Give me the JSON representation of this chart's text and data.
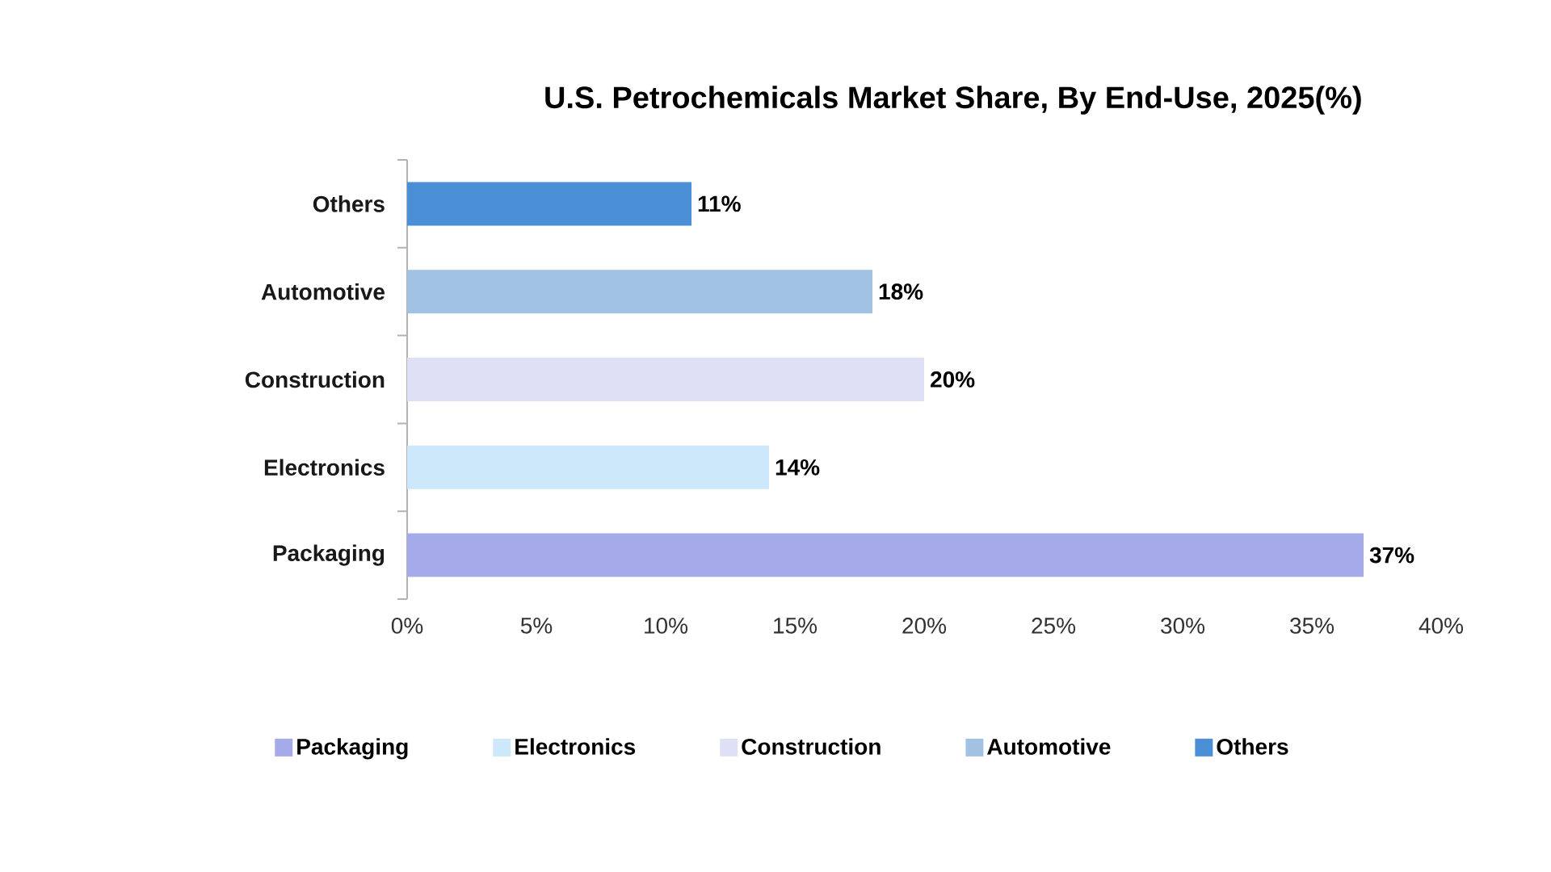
{
  "chart_data": {
    "type": "bar",
    "orientation": "horizontal",
    "stacked": true,
    "title": "U.S. Petrochemicals Market Share, By End-Use, 2025(%)",
    "categories": [
      "Others",
      "Automotive",
      "Construction",
      "Electronics",
      "Packaging"
    ],
    "series": [
      {
        "name": "Packaging",
        "color": "#a5abe8",
        "values": [
          null,
          null,
          null,
          null,
          37
        ],
        "value_labels": [
          null,
          null,
          null,
          null,
          "37%"
        ]
      },
      {
        "name": "Electronics",
        "color": "#cde8fa",
        "values": [
          null,
          null,
          null,
          14,
          null
        ],
        "value_labels": [
          null,
          null,
          null,
          "14%",
          null
        ]
      },
      {
        "name": "Construction",
        "color": "#dee0f5",
        "values": [
          null,
          null,
          20,
          null,
          null
        ],
        "value_labels": [
          null,
          null,
          "20%",
          null,
          null
        ]
      },
      {
        "name": "Automotive",
        "color": "#a1c2e3",
        "values": [
          null,
          18,
          null,
          null,
          null
        ],
        "value_labels": [
          null,
          "18%",
          null,
          null,
          null
        ]
      },
      {
        "name": "Others",
        "color": "#4a8fd6",
        "values": [
          11,
          null,
          null,
          null,
          null
        ],
        "value_labels": [
          "11%",
          null,
          null,
          null,
          null
        ]
      }
    ],
    "xlim": [
      0,
      40
    ],
    "xticks": [
      {
        "value": 0,
        "label": "0%"
      },
      {
        "value": 5,
        "label": "5%"
      },
      {
        "value": 10,
        "label": "10%"
      },
      {
        "value": 15,
        "label": "15%"
      },
      {
        "value": 20,
        "label": "20%"
      },
      {
        "value": 25,
        "label": "25%"
      },
      {
        "value": 30,
        "label": "30%"
      },
      {
        "value": 35,
        "label": "35%"
      },
      {
        "value": 40,
        "label": "40%"
      }
    ],
    "legend": "bottom"
  }
}
